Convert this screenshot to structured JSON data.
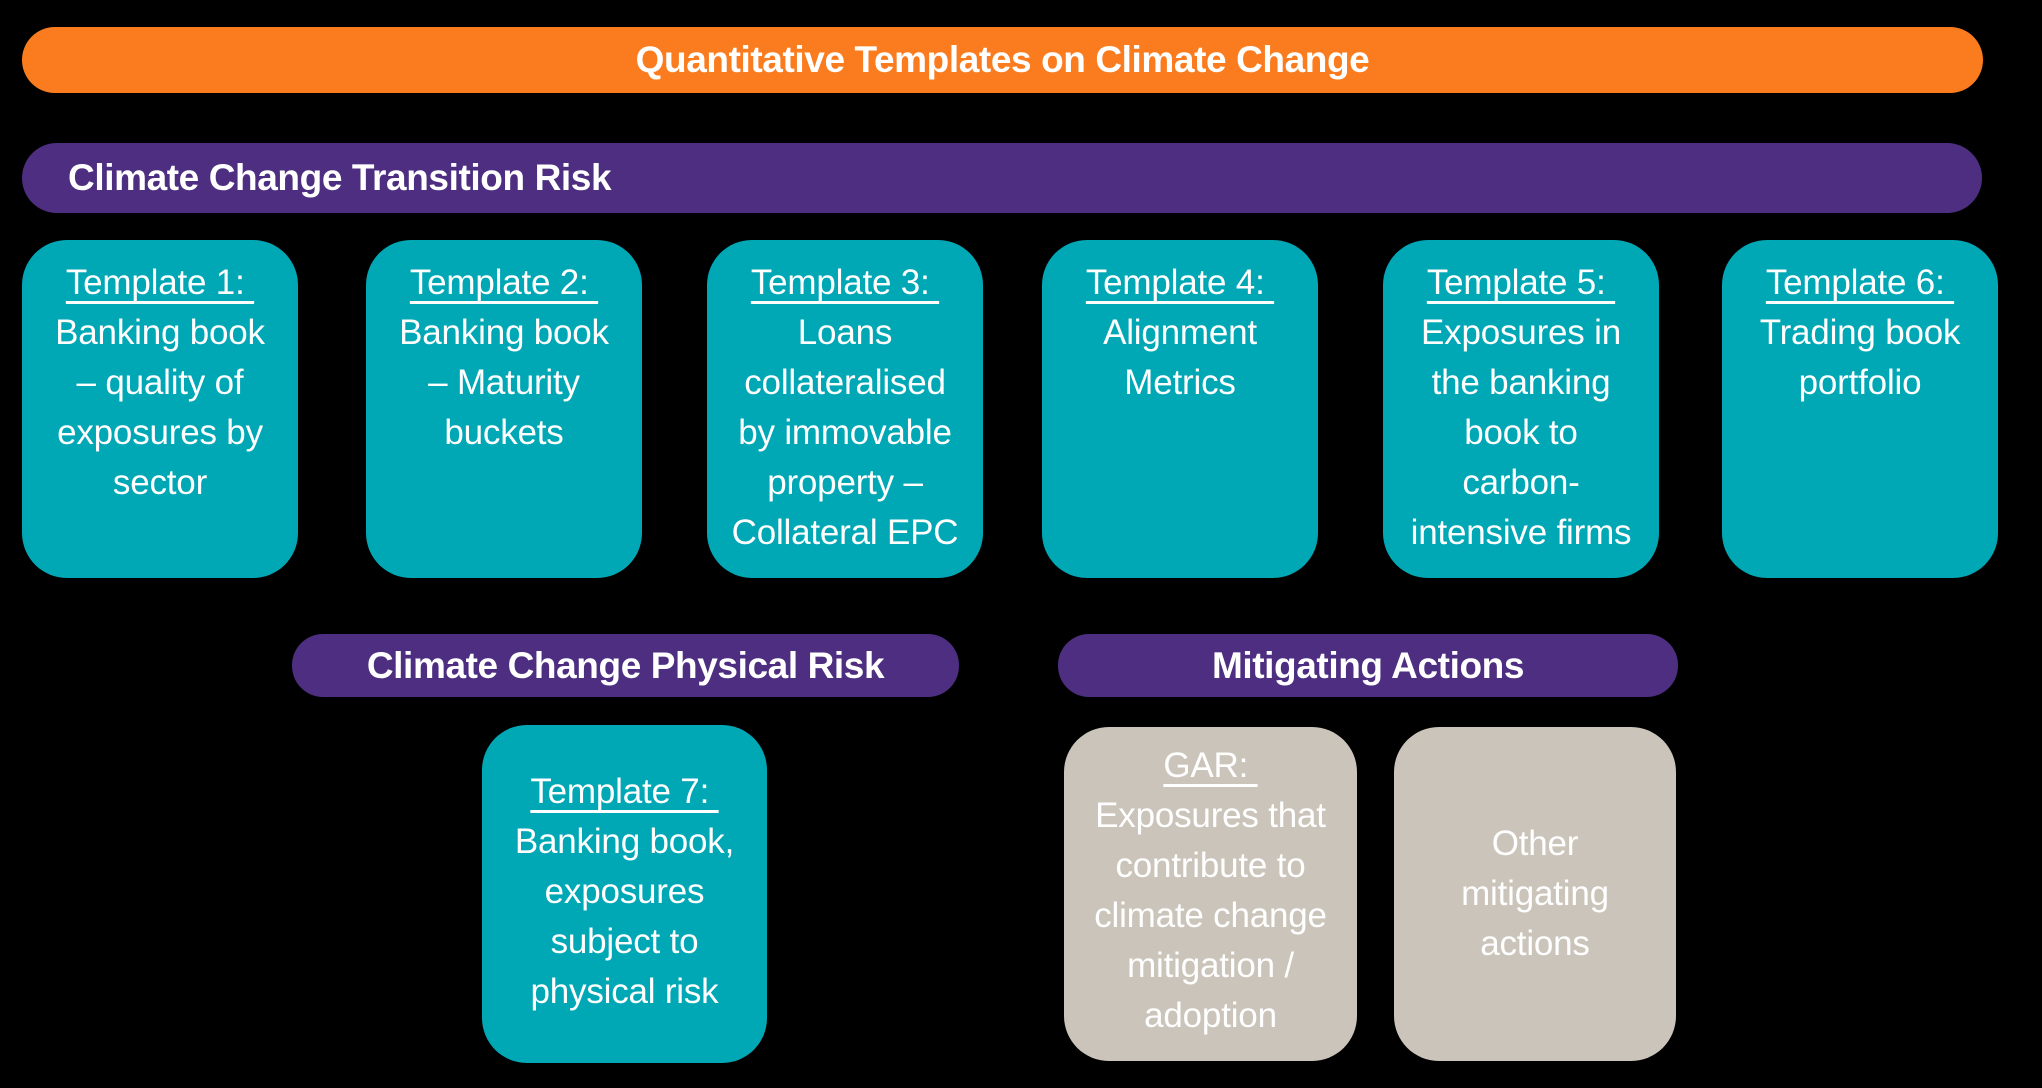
{
  "title_banner": {
    "label": "Quantitative Templates on Climate Change"
  },
  "section_banners": {
    "transition_risk": "Climate Change Transition Risk",
    "physical_risk": "Climate Change Physical Risk",
    "mitigating_actions": "Mitigating Actions"
  },
  "colors": {
    "background": "#000000",
    "title_banner_orange": "#FB7C1E",
    "section_banner_purple": "#4D2E80",
    "template_card_teal": "#00A7B5",
    "mitigating_card_gray": "#CBC4BA",
    "text": "#FFFFFF"
  },
  "transition_risk_templates": [
    {
      "title": "Template 1: ",
      "lines": [
        "Banking book",
        "– quality of",
        "exposures by",
        "sector"
      ]
    },
    {
      "title": "Template 2: ",
      "lines": [
        "Banking book",
        "– Maturity",
        "buckets"
      ]
    },
    {
      "title": "Template 3: ",
      "lines": [
        "Loans",
        "collateralised",
        "by immovable",
        "property –",
        "Collateral EPC"
      ]
    },
    {
      "title": "Template 4: ",
      "lines": [
        "Alignment",
        "Metrics"
      ]
    },
    {
      "title": "Template 5: ",
      "lines": [
        "Exposures in",
        "the banking",
        "book to",
        "carbon-",
        "intensive firms"
      ]
    },
    {
      "title": "Template 6: ",
      "lines": [
        "Trading book",
        "portfolio"
      ]
    }
  ],
  "physical_risk_templates": [
    {
      "title": "Template 7: ",
      "lines": [
        "Banking book,",
        "exposures",
        "subject to",
        "physical risk"
      ]
    }
  ],
  "mitigating_action_cards": [
    {
      "title": "GAR: ",
      "lines": [
        "Exposures that",
        "contribute to",
        "climate change",
        "mitigation /",
        "adoption"
      ]
    },
    {
      "title": "",
      "lines": [
        "Other",
        "mitigating",
        "actions"
      ]
    }
  ]
}
